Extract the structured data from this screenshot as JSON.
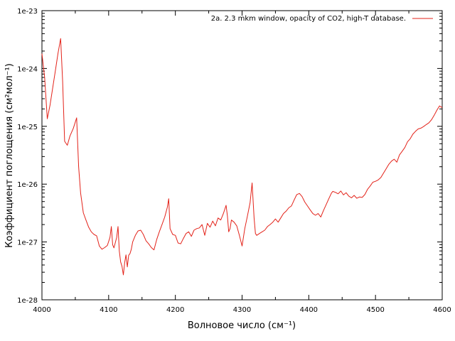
{
  "chart_data": {
    "type": "line",
    "scale_y": "log",
    "grid": false,
    "legend_placement": "top-right",
    "xlabel": "Волновое число (см⁻¹)",
    "ylabel": "Коэффициент поглощения (см²мол⁻¹)",
    "xlim": [
      4000,
      4600
    ],
    "ylim": [
      1e-28,
      1e-23
    ],
    "x_ticks": [
      {
        "value": 4000,
        "label": "4000"
      },
      {
        "value": 4100,
        "label": "4100"
      },
      {
        "value": 4200,
        "label": "4200"
      },
      {
        "value": 4300,
        "label": "4300"
      },
      {
        "value": 4400,
        "label": "4400"
      },
      {
        "value": 4500,
        "label": "4500"
      },
      {
        "value": 4600,
        "label": "4600"
      }
    ],
    "y_ticks": [
      {
        "value": 1e-28,
        "label": "1e-28"
      },
      {
        "value": 1e-27,
        "label": "1e-27"
      },
      {
        "value": 1e-26,
        "label": "1e-26"
      },
      {
        "value": 1e-25,
        "label": "1e-25"
      },
      {
        "value": 1e-24,
        "label": "1e-24"
      },
      {
        "value": 1e-23,
        "label": "1e-23"
      }
    ],
    "series": [
      {
        "name": "2a. 2.3 mkm window, opacity of CO2, high-T database.",
        "color": "#e32219",
        "x": [
          4000,
          4004,
          4008,
          4012,
          4016,
          4020,
          4024,
          4028,
          4031,
          4034,
          4038,
          4042,
          4047,
          4052,
          4055,
          4058,
          4062,
          4066,
          4070,
          4074,
          4078,
          4082,
          4086,
          4090,
          4094,
          4098,
          4102,
          4104,
          4106,
          4108,
          4112,
          4114,
          4116,
          4118,
          4120,
          4122,
          4124,
          4126,
          4128,
          4130,
          4132,
          4134,
          4136,
          4140,
          4144,
          4148,
          4152,
          4156,
          4160,
          4164,
          4168,
          4172,
          4176,
          4180,
          4184,
          4188,
          4190,
          4192,
          4196,
          4200,
          4204,
          4208,
          4212,
          4216,
          4220,
          4224,
          4228,
          4232,
          4236,
          4240,
          4244,
          4248,
          4252,
          4256,
          4260,
          4264,
          4268,
          4272,
          4276,
          4278,
          4280,
          4282,
          4284,
          4288,
          4292,
          4296,
          4300,
          4304,
          4308,
          4312,
          4315,
          4318,
          4320,
          4322,
          4326,
          4330,
          4334,
          4338,
          4342,
          4346,
          4350,
          4354,
          4358,
          4362,
          4366,
          4370,
          4374,
          4378,
          4382,
          4386,
          4390,
          4394,
          4398,
          4402,
          4406,
          4410,
          4414,
          4418,
          4422,
          4426,
          4430,
          4434,
          4436,
          4440,
          4444,
          4448,
          4452,
          4456,
          4460,
          4464,
          4468,
          4472,
          4476,
          4480,
          4484,
          4488,
          4492,
          4496,
          4500,
          4504,
          4508,
          4512,
          4516,
          4520,
          4524,
          4528,
          4532,
          4536,
          4540,
          4544,
          4548,
          4552,
          4556,
          4560,
          4564,
          4568,
          4572,
          4576,
          4580,
          4584,
          4588,
          4592,
          4596,
          4600
        ],
        "y": [
          1.8e-24,
          7e-25,
          1.35e-25,
          2.3e-25,
          4.5e-25,
          9e-25,
          1.8e-24,
          3.3e-24,
          6e-25,
          5.5e-26,
          4.7e-26,
          6.8e-26,
          9.2e-26,
          1.4e-25,
          2e-26,
          7e-27,
          3.2e-27,
          2.4e-27,
          1.8e-27,
          1.5e-27,
          1.35e-27,
          1.28e-27,
          8.5e-28,
          7.5e-28,
          8e-28,
          8.7e-28,
          1.2e-27,
          1.85e-27,
          8.9e-28,
          7.9e-28,
          1.2e-27,
          1.85e-27,
          7e-28,
          4.5e-28,
          3.8e-28,
          2.7e-28,
          4.4e-28,
          6e-28,
          3.7e-28,
          5.9e-28,
          6.3e-28,
          7.5e-28,
          1e-27,
          1.3e-27,
          1.55e-27,
          1.6e-27,
          1.35e-27,
          1.05e-27,
          9.3e-28,
          8e-28,
          7.3e-28,
          1.1e-27,
          1.5e-27,
          2e-27,
          2.7e-27,
          4e-27,
          5.6e-27,
          1.7e-27,
          1.35e-27,
          1.3e-27,
          9.6e-28,
          9.3e-28,
          1.15e-27,
          1.4e-27,
          1.5e-27,
          1.25e-27,
          1.6e-27,
          1.7e-27,
          1.75e-27,
          2e-27,
          1.3e-27,
          2.1e-27,
          1.8e-27,
          2.3e-27,
          1.9e-27,
          2.6e-27,
          2.4e-27,
          3.1e-27,
          4.3e-27,
          2.8e-27,
          1.5e-27,
          1.7e-27,
          2.4e-27,
          2.2e-27,
          1.9e-27,
          1.3e-27,
          8.5e-28,
          1.7e-27,
          2.8e-27,
          4.8e-27,
          1.05e-26,
          2.6e-27,
          1.4e-27,
          1.3e-27,
          1.4e-27,
          1.5e-27,
          1.6e-27,
          1.85e-27,
          2e-27,
          2.2e-27,
          2.5e-27,
          2.2e-27,
          2.6e-27,
          3.1e-27,
          3.4e-27,
          3.9e-27,
          4.2e-27,
          5.3e-27,
          6.6e-27,
          6.9e-27,
          6.1e-27,
          4.9e-27,
          4.2e-27,
          3.6e-27,
          3.1e-27,
          2.9e-27,
          3.1e-27,
          2.7e-27,
          3.5e-27,
          4.4e-27,
          5.6e-27,
          7e-27,
          7.5e-27,
          7.2e-27,
          6.8e-27,
          7.6e-27,
          6.5e-27,
          7.1e-27,
          6.2e-27,
          5.8e-27,
          6.4e-27,
          5.7e-27,
          6e-27,
          5.9e-27,
          6.6e-27,
          8.1e-27,
          9.3e-27,
          1.08e-26,
          1.12e-26,
          1.18e-26,
          1.3e-26,
          1.55e-26,
          1.85e-26,
          2.2e-26,
          2.5e-26,
          2.7e-26,
          2.4e-26,
          3.2e-26,
          3.7e-26,
          4.3e-26,
          5.4e-26,
          6.1e-26,
          7.3e-26,
          8.2e-26,
          9e-26,
          9.3e-26,
          9.9e-26,
          1.07e-25,
          1.15e-25,
          1.3e-25,
          1.55e-25,
          1.9e-25,
          2.25e-25,
          2.1e-25
        ]
      }
    ]
  }
}
